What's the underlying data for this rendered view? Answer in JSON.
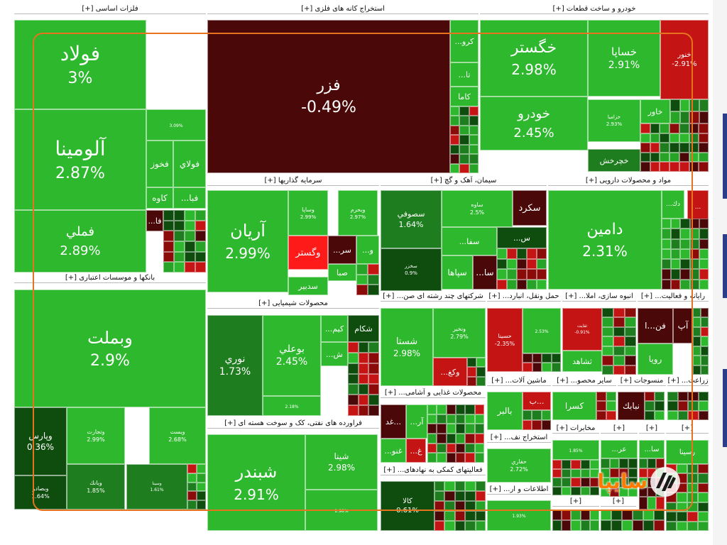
{
  "chart_data": {
    "type": "treemap",
    "colors": {
      "green": "#2eb82e",
      "green_mid": "#27a327",
      "green_dark": "#1e7d1e",
      "green_deep": "#0e4d0e",
      "red_bright": "#ff1a1a",
      "red": "#c41414",
      "red_dark": "#8b0a0a",
      "maroon": "#4a0808"
    },
    "sectors": [
      {
        "label": "فلزات اساسی [+]"
      },
      {
        "label": "استخراج کانه های فلزی [+]"
      },
      {
        "label": "خودرو و ساخت قطعات [+]"
      },
      {
        "label": "سرمایه گذاریها [+]"
      },
      {
        "label": "سیمان، آهک و گچ [+]"
      },
      {
        "label": "مواد و محصولات دارویی [+]"
      },
      {
        "label": "بانکها و موسسات اعتباری [+]"
      },
      {
        "label": "محصولات شیمیایی [+]"
      },
      {
        "label": "شرکتهای چند رشته ای صن... [+]"
      },
      {
        "label": "حمل ونقل، انبارد... [+]"
      },
      {
        "label": "انبوه سازی، املا... [+]"
      },
      {
        "label": "رایانه و فعالیت... [+]"
      },
      {
        "label": "فراورده های نفتی، کک و سوخت هسته ای [+]"
      },
      {
        "label": "محصولات غذایی و آشامی... [+]"
      },
      {
        "label": "ماشین آلات... [+]"
      },
      {
        "label": "سایر محصو... [+]"
      },
      {
        "label": "منسوجات [+]"
      },
      {
        "label": "زراعت... [+]"
      },
      {
        "label": "استخراج نف... [+]"
      },
      {
        "label": "مخابرات [+]"
      },
      {
        "label": "فعالیتهای کمکی به نهادهای... [+]"
      },
      {
        "label": "اطلاعات و ار... [+]"
      },
      {
        "label": "[+]"
      },
      {
        "label": "[+]"
      },
      {
        "label": "[+]"
      },
      {
        "label": "[+]"
      },
      {
        "label": "[+]"
      },
      {
        "label": "[+]"
      }
    ],
    "tiles": [
      {
        "name": "فولاد",
        "change": "3%",
        "color": "green"
      },
      {
        "name": "آلومینا",
        "change": "2.87%",
        "color": "green"
      },
      {
        "name": "فملي",
        "change": "2.89%",
        "color": "green"
      },
      {
        "name": "فخوز",
        "change": "",
        "color": "green"
      },
      {
        "name": "فولاي",
        "change": "",
        "color": "green"
      },
      {
        "name": "كاوه",
        "change": "",
        "color": "green"
      },
      {
        "name": "فبا...",
        "change": "",
        "color": "green"
      },
      {
        "name": "فا...",
        "change": "",
        "color": "maroon"
      },
      {
        "name": "",
        "change": "3.09%",
        "color": "green"
      },
      {
        "name": "فزر",
        "change": "-0.49%",
        "color": "maroon"
      },
      {
        "name": "كرو...",
        "change": "",
        "color": "green"
      },
      {
        "name": "تا...",
        "change": "",
        "color": "green"
      },
      {
        "name": "كاما",
        "change": "",
        "color": "green"
      },
      {
        "name": "خگستر",
        "change": "2.98%",
        "color": "green"
      },
      {
        "name": "خساپا",
        "change": "2.91%",
        "color": "green"
      },
      {
        "name": "خنور",
        "change": "-2.91%",
        "color": "red"
      },
      {
        "name": "خودرو",
        "change": "2.45%",
        "color": "green"
      },
      {
        "name": "خزامیا",
        "change": "2.93%",
        "color": "green"
      },
      {
        "name": "خاور",
        "change": "",
        "color": "green"
      },
      {
        "name": "خچرخش",
        "change": "",
        "color": "green_dark"
      },
      {
        "name": "آريان",
        "change": "2.99%",
        "color": "green"
      },
      {
        "name": "وساپا",
        "change": "2.99%",
        "color": "green"
      },
      {
        "name": "وبحرم",
        "change": "2.97%",
        "color": "green"
      },
      {
        "name": "وگستر",
        "change": "",
        "color": "red_bright"
      },
      {
        "name": "سر...",
        "change": "",
        "color": "maroon"
      },
      {
        "name": "و...",
        "change": "",
        "color": "green"
      },
      {
        "name": "صبا",
        "change": "",
        "color": "green"
      },
      {
        "name": "سدبير",
        "change": "",
        "color": "green"
      },
      {
        "name": "سصوفي",
        "change": "1.64%",
        "color": "green_dark"
      },
      {
        "name": "ساوه",
        "change": "2.5%",
        "color": "green"
      },
      {
        "name": "سكرد",
        "change": "",
        "color": "maroon"
      },
      {
        "name": "سفا...",
        "change": "",
        "color": "green"
      },
      {
        "name": "س...",
        "change": "",
        "color": "green_deep"
      },
      {
        "name": "سخزر",
        "change": "0.9%",
        "color": "green_deep"
      },
      {
        "name": "سپاها",
        "change": "",
        "color": "green"
      },
      {
        "name": "سا...",
        "change": "",
        "color": "maroon"
      },
      {
        "name": "دامين",
        "change": "2.31%",
        "color": "green"
      },
      {
        "name": "دك...",
        "change": "",
        "color": "green"
      },
      {
        "name": "...",
        "change": "",
        "color": "red"
      },
      {
        "name": "وبملت",
        "change": "2.9%",
        "color": "green"
      },
      {
        "name": "وپارس",
        "change": "0.36%",
        "color": "green_deep"
      },
      {
        "name": "وتجارت",
        "change": "2.99%",
        "color": "green"
      },
      {
        "name": "وبست",
        "change": "2.68%",
        "color": "green"
      },
      {
        "name": "وبصادر",
        "change": "1.64%",
        "color": "green_deep"
      },
      {
        "name": "وبانك",
        "change": "1.85%",
        "color": "green_dark"
      },
      {
        "name": "وسينا",
        "change": "1.61%",
        "color": "green_dark"
      },
      {
        "name": "نوري",
        "change": "1.73%",
        "color": "green_dark"
      },
      {
        "name": "بوعلي",
        "change": "2.45%",
        "color": "green"
      },
      {
        "name": "كيم...",
        "change": "",
        "color": "green"
      },
      {
        "name": "شكام",
        "change": "",
        "color": "green_deep"
      },
      {
        "name": "ش...",
        "change": "",
        "color": "green"
      },
      {
        "name": "",
        "change": "2.18%",
        "color": "green"
      },
      {
        "name": "شستا",
        "change": "2.98%",
        "color": "green"
      },
      {
        "name": "ونخير",
        "change": "2.79%",
        "color": "green"
      },
      {
        "name": "وكغ...",
        "change": "",
        "color": "red"
      },
      {
        "name": "حسينا",
        "change": "-2.35%",
        "color": "red"
      },
      {
        "name": "",
        "change": "2.53%",
        "color": "green"
      },
      {
        "name": "ثقايت",
        "change": "-0.91%",
        "color": "red"
      },
      {
        "name": "ثشاهد",
        "change": "",
        "color": "green"
      },
      {
        "name": "فن...ا",
        "change": "",
        "color": "maroon"
      },
      {
        "name": "آپ",
        "change": "",
        "color": "maroon"
      },
      {
        "name": "رويا",
        "change": "",
        "color": "green"
      },
      {
        "name": "شبندر",
        "change": "2.91%",
        "color": "green"
      },
      {
        "name": "شينا",
        "change": "2.98%",
        "color": "green"
      },
      {
        "name": "",
        "change": "2.98%",
        "color": "green"
      },
      {
        "name": "...غد",
        "change": "",
        "color": "maroon"
      },
      {
        "name": "آر...",
        "change": "",
        "color": "green"
      },
      {
        "name": "غ...",
        "change": "",
        "color": "red"
      },
      {
        "name": "غنو...",
        "change": "",
        "color": "green"
      },
      {
        "name": "بالبر",
        "change": "",
        "color": "green"
      },
      {
        "name": "...ب",
        "change": "",
        "color": "red"
      },
      {
        "name": "كسرا",
        "change": "",
        "color": "green"
      },
      {
        "name": "نبابك",
        "change": "",
        "color": "maroon"
      },
      {
        "name": "حفاري",
        "change": "2.72%",
        "color": "green"
      },
      {
        "name": "",
        "change": "1.85%",
        "color": "green"
      },
      {
        "name": "عر...",
        "change": "",
        "color": "green"
      },
      {
        "name": "سا...",
        "change": "",
        "color": "green"
      },
      {
        "name": "حد...",
        "change": "",
        "color": "green"
      },
      {
        "name": "رسينا",
        "change": "",
        "color": "green"
      },
      {
        "name": "كالا",
        "change": "0.61%",
        "color": "green_deep"
      },
      {
        "name": "",
        "change": "1.93%",
        "color": "green"
      }
    ]
  },
  "watermark": {
    "text": "سایپا",
    "logo": "saipa-logo-icon"
  }
}
